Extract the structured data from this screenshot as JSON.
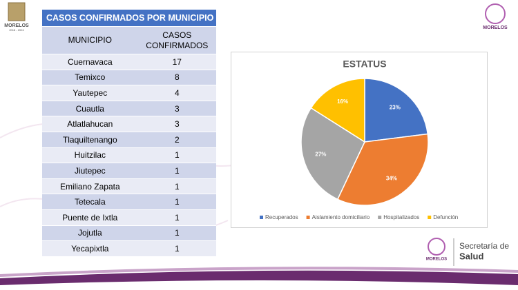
{
  "header": {
    "logo_text": "MORELOS",
    "logo_years": "2018 - 2024",
    "right_logo_text": "MORELOS"
  },
  "table": {
    "title": "CASOS CONFIRMADOS POR MUNICIPIO",
    "columns": [
      "MUNICIPIO",
      "CASOS CONFIRMADOS"
    ],
    "rows": [
      [
        "Cuernavaca",
        17
      ],
      [
        "Temixco",
        8
      ],
      [
        "Yautepec",
        4
      ],
      [
        "Cuautla",
        3
      ],
      [
        "Atlatlahucan",
        3
      ],
      [
        "Tlaquiltenango",
        2
      ],
      [
        "Huitzilac",
        1
      ],
      [
        "Jiutepec",
        1
      ],
      [
        "Emiliano Zapata",
        1
      ],
      [
        "Tetecala",
        1
      ],
      [
        "Puente de Ixtla",
        1
      ],
      [
        "Jojutla",
        1
      ],
      [
        "Yecapixtla",
        1
      ]
    ]
  },
  "chart_data": {
    "type": "pie",
    "title": "ESTATUS",
    "categories": [
      "Recuperados",
      "Aislamiento domiciliario",
      "Hospitalizados",
      "Defunción"
    ],
    "values": [
      23,
      34,
      27,
      16
    ],
    "value_labels": [
      "23%",
      "34%",
      "27%",
      "16%"
    ],
    "colors": [
      "#4472c4",
      "#ed7d31",
      "#a5a5a5",
      "#ffc000"
    ],
    "legend": "bottom"
  },
  "footer": {
    "logo_text": "MORELOS",
    "line1": "Secretaría de",
    "line2": "Salud"
  }
}
